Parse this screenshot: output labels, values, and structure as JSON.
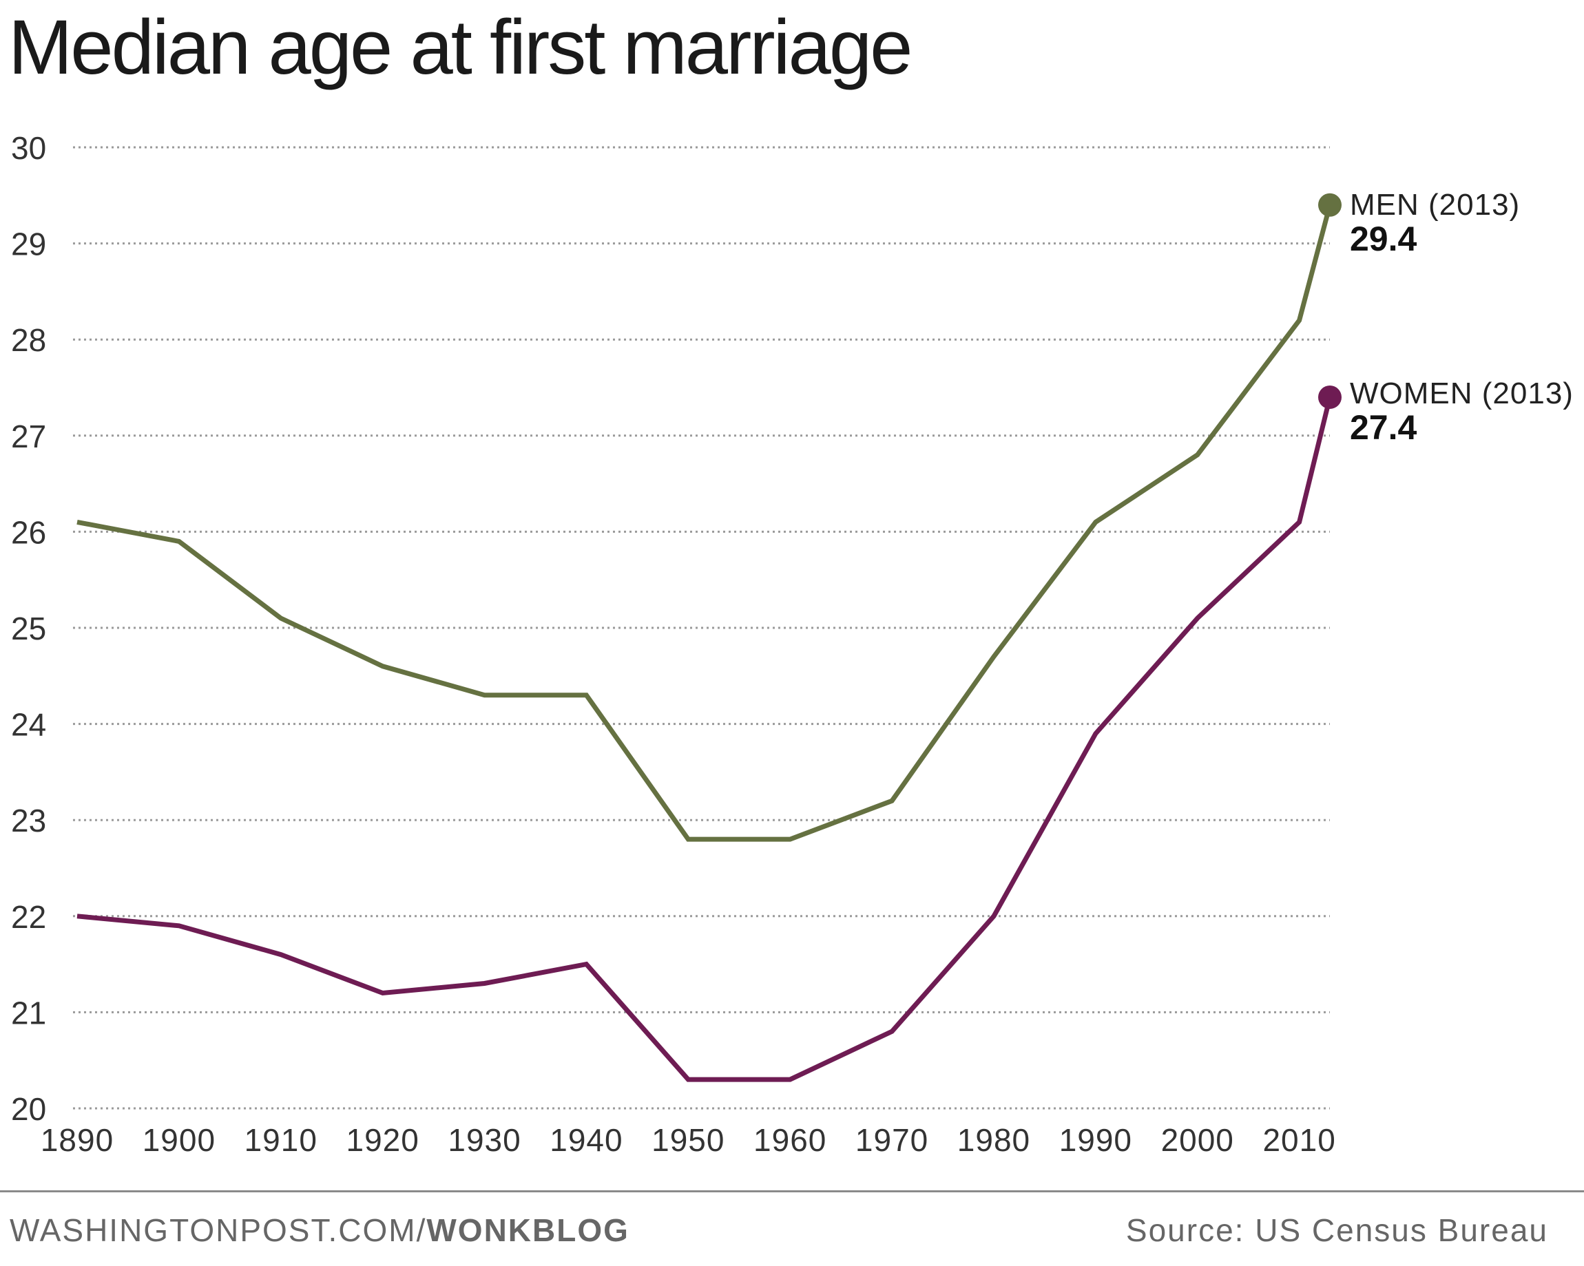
{
  "title": "Median age at first marriage",
  "footer": {
    "site": "WASHINGTONPOST.COM/",
    "blog": "WONKBLOG",
    "source": "Source: US Census Bureau"
  },
  "colors": {
    "men": "#657141",
    "women": "#6e1c53",
    "grid": "#9a9a9a",
    "text": "#222222"
  },
  "chart_data": {
    "type": "line",
    "title": "Median age at first marriage",
    "xlabel": "",
    "ylabel": "",
    "xlim": [
      1890,
      2013
    ],
    "ylim": [
      20,
      30
    ],
    "x_ticks": [
      "1890",
      "1900",
      "1910",
      "1920",
      "1930",
      "1940",
      "1950",
      "1960",
      "1970",
      "1980",
      "1990",
      "2000",
      "2010"
    ],
    "y_ticks": [
      "20",
      "21",
      "22",
      "23",
      "24",
      "25",
      "26",
      "27",
      "28",
      "29",
      "30"
    ],
    "grid": "horizontal dotted",
    "series": [
      {
        "name": "MEN",
        "color": "#657141",
        "x": [
          1890,
          1900,
          1910,
          1920,
          1930,
          1940,
          1950,
          1960,
          1970,
          1980,
          1990,
          2000,
          2010,
          2013
        ],
        "y": [
          26.1,
          25.9,
          25.1,
          24.6,
          24.3,
          24.3,
          22.8,
          22.8,
          23.2,
          24.7,
          26.1,
          26.8,
          28.2,
          29.4
        ],
        "end_label": "MEN (2013)",
        "end_value": "29.4"
      },
      {
        "name": "WOMEN",
        "color": "#6e1c53",
        "x": [
          1890,
          1900,
          1910,
          1920,
          1930,
          1940,
          1950,
          1960,
          1970,
          1980,
          1990,
          2000,
          2010,
          2013
        ],
        "y": [
          22.0,
          21.9,
          21.6,
          21.2,
          21.3,
          21.5,
          20.3,
          20.3,
          20.8,
          22.0,
          23.9,
          25.1,
          26.1,
          27.4
        ],
        "end_label": "WOMEN (2013)",
        "end_value": "27.4"
      }
    ]
  }
}
